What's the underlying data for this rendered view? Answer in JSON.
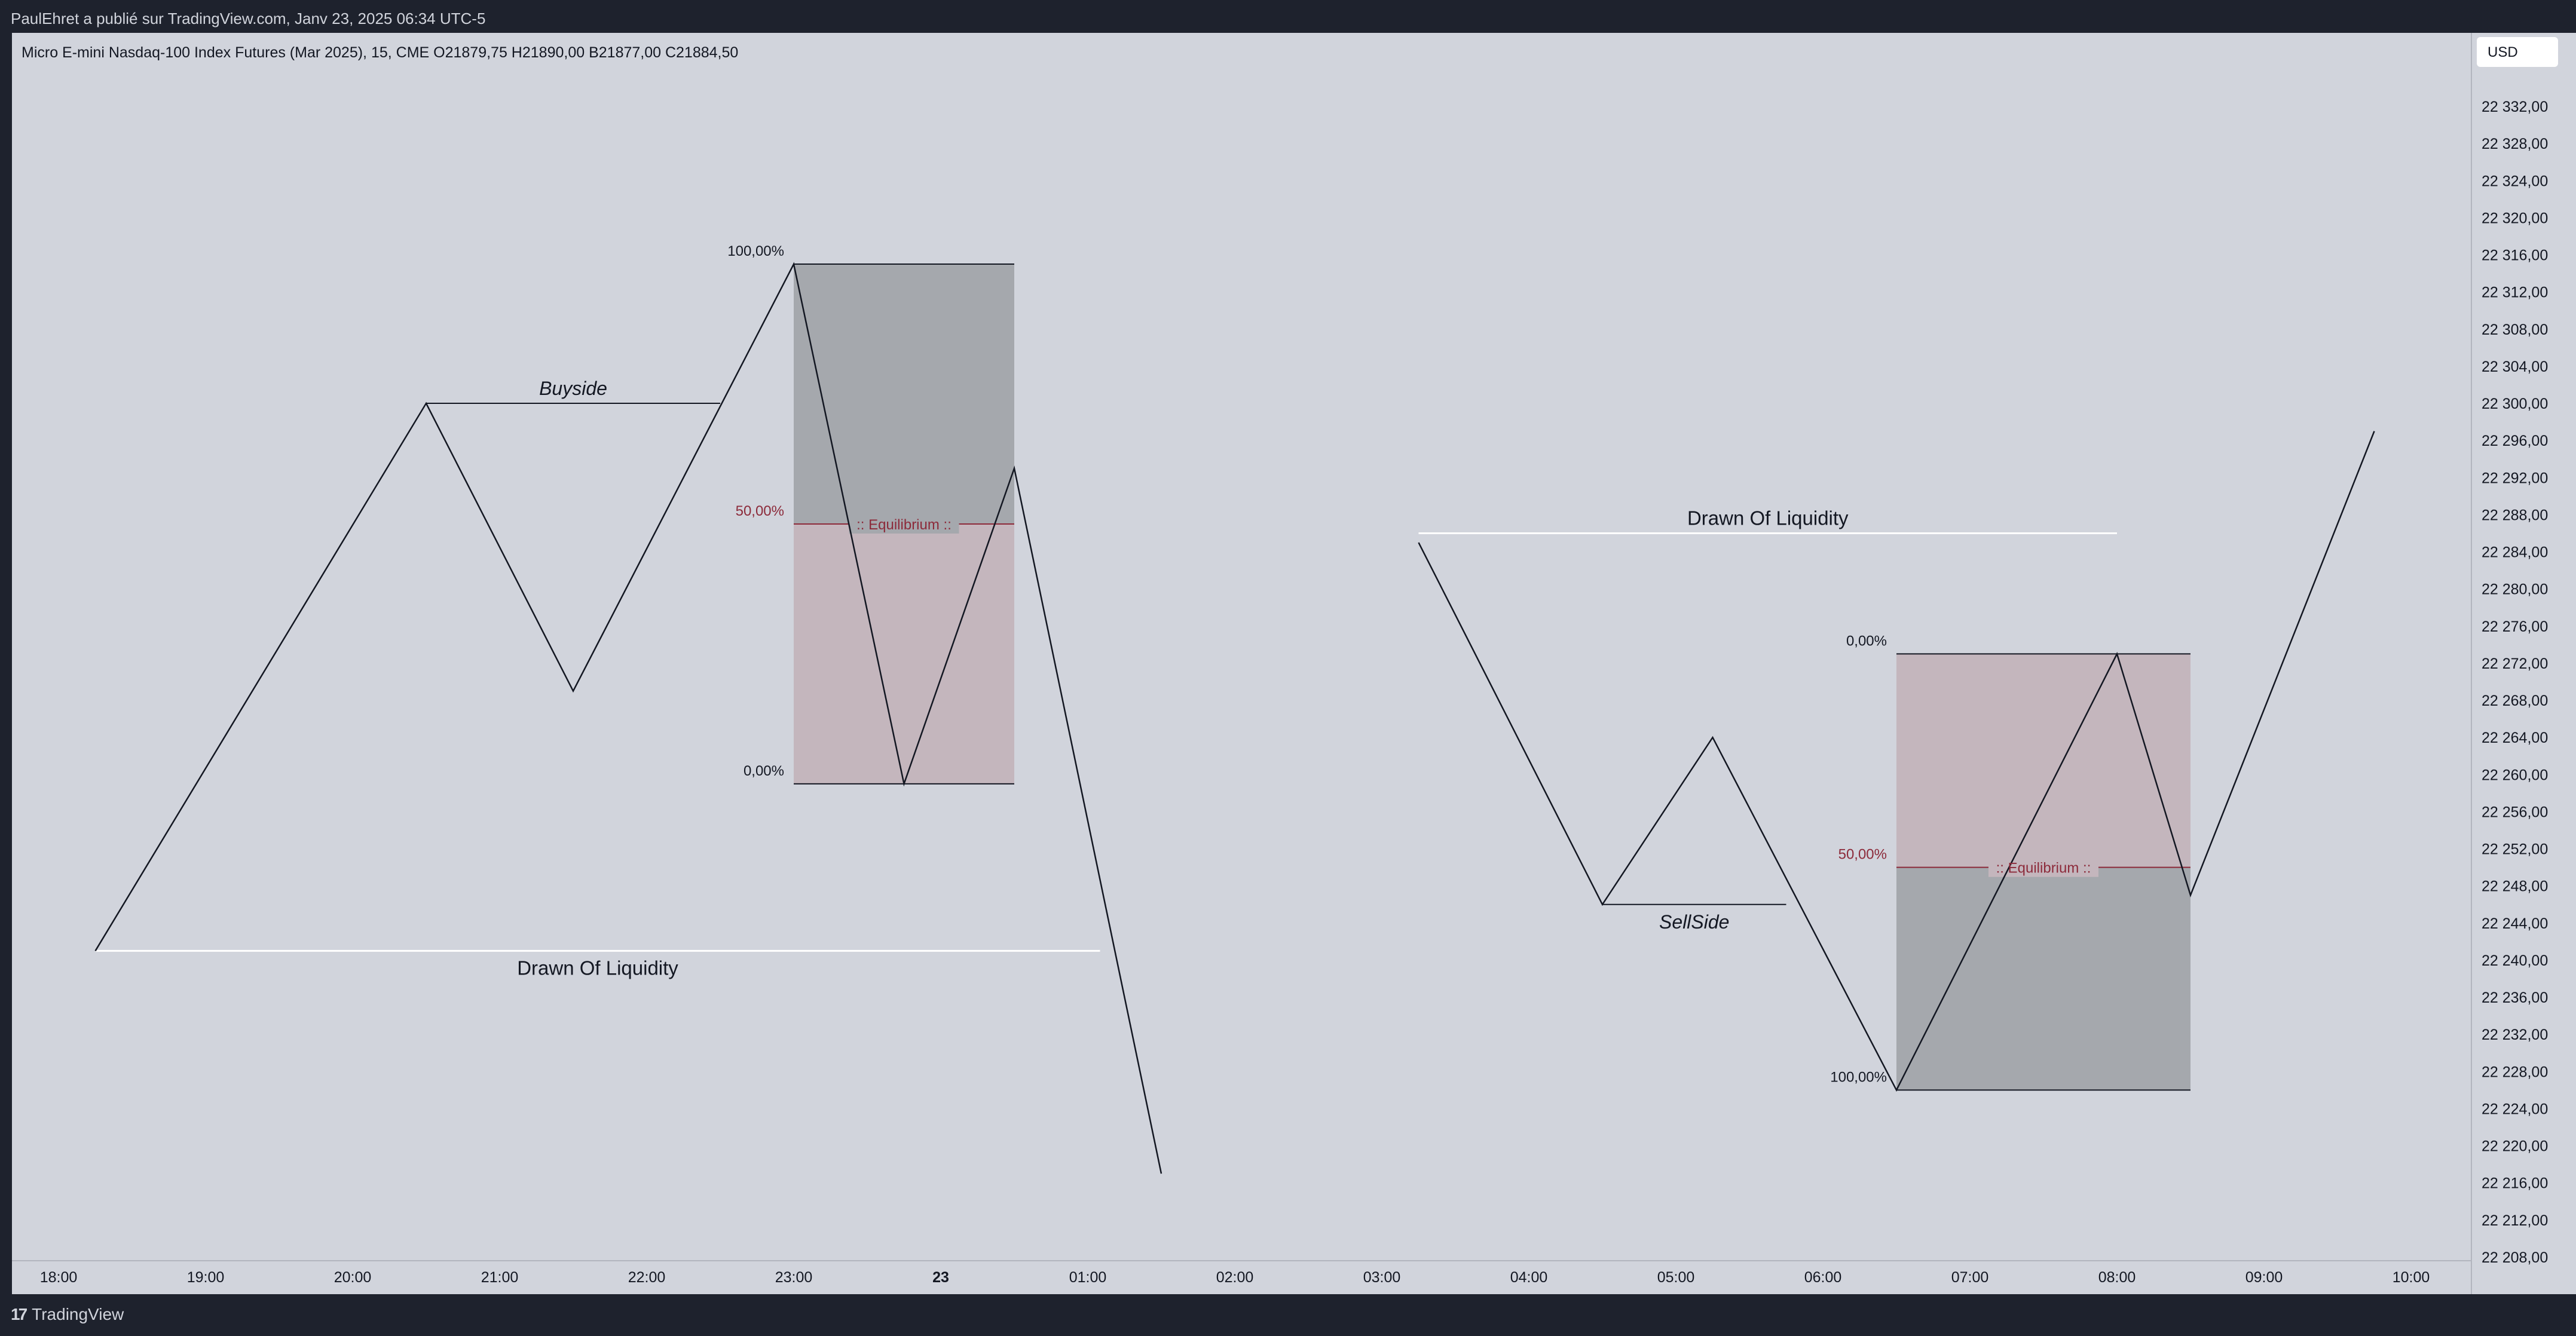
{
  "header": {
    "publisher_line": "PaulEhret a publié sur TradingView.com, Janv 23, 2025 06:34 UTC-5",
    "symbol_line": "Micro E-mini Nasdaq-100 Index Futures (Mar 2025), 15, CME  O21879,75  H21890,00  B21877,00  C21884,50"
  },
  "price_axis": {
    "currency_button": "USD",
    "labels": [
      "22 332,00",
      "22 328,00",
      "22 324,00",
      "22 320,00",
      "22 316,00",
      "22 312,00",
      "22 308,00",
      "22 304,00",
      "22 300,00",
      "22 296,00",
      "22 292,00",
      "22 288,00",
      "22 284,00",
      "22 280,00",
      "22 276,00",
      "22 272,00",
      "22 268,00",
      "22 264,00",
      "22 260,00",
      "22 256,00",
      "22 252,00",
      "22 248,00",
      "22 244,00",
      "22 240,00",
      "22 236,00",
      "22 232,00",
      "22 228,00",
      "22 224,00",
      "22 220,00",
      "22 216,00",
      "22 212,00",
      "22 208,00"
    ]
  },
  "time_axis": {
    "labels": [
      "18:00",
      "19:00",
      "20:00",
      "21:00",
      "22:00",
      "23:00",
      "23",
      "01:00",
      "02:00",
      "03:00",
      "04:00",
      "05:00",
      "06:00",
      "07:00",
      "08:00",
      "09:00",
      "10:00"
    ]
  },
  "footer": {
    "brand": "TradingView",
    "brand_mark": "17"
  },
  "colors": {
    "plot_background": "#d1d4dc",
    "line": "#131722",
    "premium_zone": "#a5a8ad",
    "discount_zone": "#c4b6bd",
    "equilibrium": "#8c2a3a",
    "liquidity_line": "#ffffff"
  },
  "chart_data": {
    "type": "line",
    "title": "Micro E-mini Nasdaq-100 Index Futures (Mar 2025), 15, CME",
    "ylim": [
      22206,
      22336
    ],
    "x_ticks": [
      "18:00",
      "19:00",
      "20:00",
      "21:00",
      "22:00",
      "23:00",
      "23",
      "01:00",
      "02:00",
      "03:00",
      "04:00",
      "05:00",
      "06:00",
      "07:00",
      "08:00",
      "09:00",
      "10:00"
    ],
    "grid": false,
    "series": [
      {
        "values": [
          {
            "x": "18:15",
            "y": 22241
          },
          {
            "x": "20:30",
            "y": 22300
          },
          {
            "x": "21:30",
            "y": 22269
          },
          {
            "x": "23:00",
            "y": 22315
          },
          {
            "x": "23:45",
            "y": 22259
          },
          {
            "x": "00:30",
            "y": 22293
          },
          {
            "x": "01:30",
            "y": 22217
          }
        ]
      },
      {
        "values": [
          {
            "x": "03:15",
            "y": 22285
          },
          {
            "x": "04:30",
            "y": 22246
          },
          {
            "x": "05:15",
            "y": 22264
          },
          {
            "x": "06:30",
            "y": 22226
          },
          {
            "x": "08:00",
            "y": 22273
          },
          {
            "x": "08:30",
            "y": 22247
          },
          {
            "x": "09:45",
            "y": 22297
          }
        ]
      }
    ],
    "annotations": [
      {
        "kind": "line",
        "label": "Buyside",
        "x1": "20:30",
        "x2": "22:30",
        "y": 22300
      },
      {
        "kind": "line",
        "label": "Drawn Of Liquidity",
        "x1": "18:15",
        "x2": "01:05",
        "y": 22241
      },
      {
        "kind": "line",
        "label": "Drawn Of Liquidity",
        "x1": "03:15",
        "x2": "08:00",
        "y": 22286
      },
      {
        "kind": "line",
        "label": "SellSide",
        "x1": "04:30",
        "x2": "05:45",
        "y": 22246
      }
    ],
    "fib_zones": [
      {
        "x1": "23:00",
        "x2": "00:30",
        "y_100": 22315,
        "y_50": 22287,
        "y_0": 22259,
        "labels": {
          "top": "100,00%",
          "mid": "50,00%",
          "bottom": "0,00%",
          "eq": ":: Equilibrium ::"
        }
      },
      {
        "x1": "06:30",
        "x2": "08:30",
        "y_0": 22273,
        "y_50": 22250,
        "y_100": 22226,
        "labels": {
          "top": "0,00%",
          "mid": "50,00%",
          "bottom": "100,00%",
          "eq": ":: Equilibrium ::"
        }
      }
    ]
  }
}
